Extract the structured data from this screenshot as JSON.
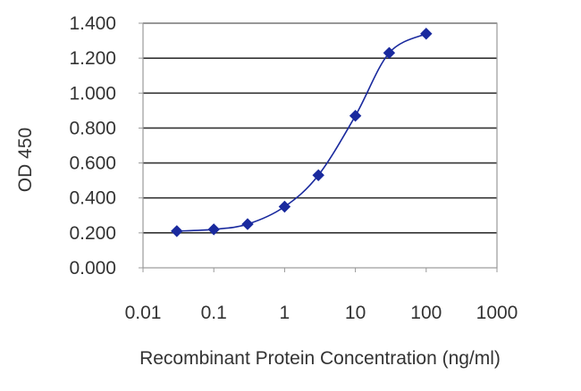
{
  "chart_data": {
    "type": "line",
    "title": "",
    "xlabel": "Recombinant Protein Concentration (ng/ml)",
    "ylabel": "OD 450",
    "x_scale": "log",
    "xlim": [
      0.01,
      1000
    ],
    "ylim": [
      0,
      1.4
    ],
    "x_ticks": [
      0.01,
      0.1,
      1,
      10,
      100,
      1000
    ],
    "x_tick_labels": [
      "0.01",
      "0.1",
      "1",
      "10",
      "100",
      "1000"
    ],
    "y_ticks": [
      0,
      0.2,
      0.4,
      0.6,
      0.8,
      1.0,
      1.2,
      1.4
    ],
    "y_tick_labels": [
      "0.000",
      "0.200",
      "0.400",
      "0.600",
      "0.800",
      "1.000",
      "1.200",
      "1.400"
    ],
    "grid": "horizontal",
    "legend": "none",
    "series": [
      {
        "x": [
          0.03,
          0.1,
          0.3,
          1,
          3,
          10,
          30,
          100
        ],
        "y": [
          0.21,
          0.22,
          0.25,
          0.35,
          0.53,
          0.87,
          1.23,
          1.34
        ],
        "color": "#1a2a9e",
        "marker": "diamond"
      }
    ],
    "colors": {
      "series": "#1a2a9e",
      "gridline": "#333333",
      "frame": "#999999",
      "text": "#333333"
    }
  }
}
